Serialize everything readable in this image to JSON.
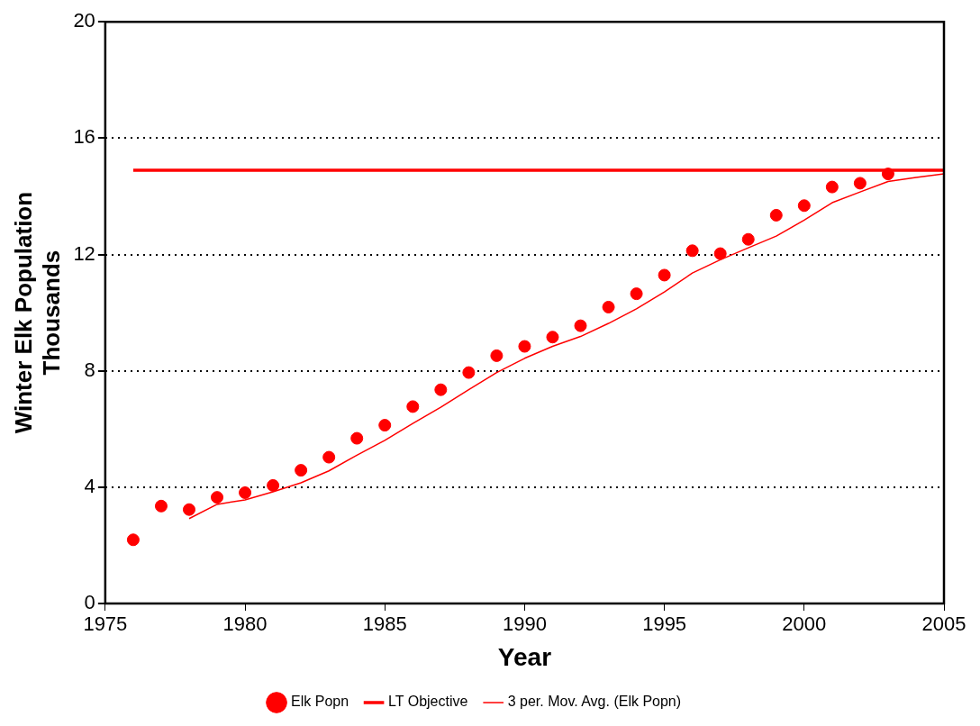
{
  "chart_data": {
    "type": "scatter",
    "xlabel": "Year",
    "ylabel": "Winter Elk Population\nThousands",
    "xlim": [
      1975,
      2005
    ],
    "xticks": [
      1975,
      1980,
      1985,
      1990,
      1995,
      2000,
      2005
    ],
    "ylim": [
      0,
      20
    ],
    "yticks": [
      0,
      4,
      8,
      12,
      16,
      20
    ],
    "grid": "y",
    "legend": "bottom",
    "series": [
      {
        "name": "Elk Popn",
        "type": "scatter",
        "marker": "circle",
        "color": "#ff0000",
        "x": [
          1976,
          1977,
          1978,
          1979,
          1980,
          1981,
          1982,
          1983,
          1984,
          1985,
          1986,
          1987,
          1988,
          1989,
          1990,
          1991,
          1992,
          1993,
          1994,
          1995,
          1996,
          1997,
          1998,
          1999,
          2000,
          2001,
          2002,
          2003
        ],
        "values": [
          2.19,
          3.35,
          3.23,
          3.65,
          3.81,
          4.06,
          4.58,
          5.03,
          5.68,
          6.13,
          6.77,
          7.35,
          7.94,
          8.52,
          8.84,
          9.16,
          9.55,
          10.19,
          10.65,
          11.29,
          12.13,
          12.03,
          12.52,
          13.35,
          13.68,
          14.32,
          14.45,
          14.77
        ]
      },
      {
        "name": "LT Objective",
        "type": "line",
        "marker": "none",
        "color": "#ff0000",
        "x": [
          1976,
          2005
        ],
        "values": [
          14.9,
          14.9
        ]
      },
      {
        "name": "3 per. Mov. Avg. (Elk Popn)",
        "type": "line",
        "marker": "none",
        "color": "#ff0000",
        "x": [
          1978,
          1979,
          1980,
          1981,
          1982,
          1983,
          1984,
          1985,
          1986,
          1987,
          1988,
          1989,
          1990,
          1991,
          1992,
          1993,
          1994,
          1995,
          1996,
          1997,
          1998,
          1999,
          2000,
          2001,
          2002,
          2003,
          2004,
          2005
        ],
        "values": [
          2.92,
          3.41,
          3.56,
          3.84,
          4.15,
          4.56,
          5.1,
          5.61,
          6.19,
          6.75,
          7.35,
          7.94,
          8.43,
          8.84,
          9.18,
          9.63,
          10.13,
          10.71,
          11.36,
          11.82,
          12.23,
          12.63,
          13.18,
          13.78,
          14.15,
          14.51,
          14.65,
          14.77
        ]
      }
    ]
  }
}
